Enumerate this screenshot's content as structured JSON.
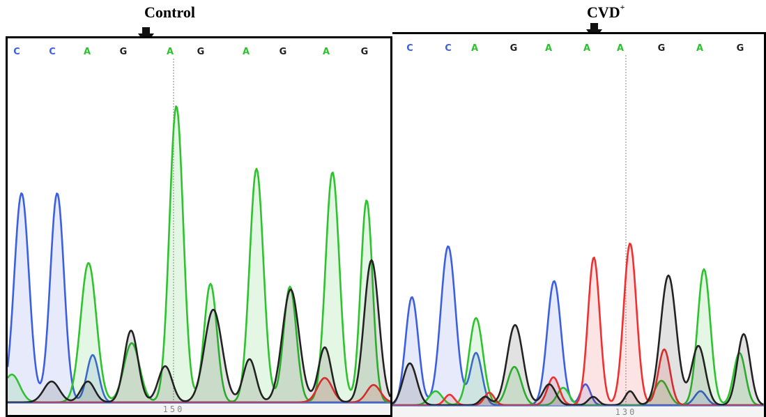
{
  "titles": {
    "control": "Control",
    "cvd": "CVD",
    "cvd_sup": "+"
  },
  "colors": {
    "C": "#3b5fe0",
    "A": "#2ec22e",
    "G": "#222222",
    "T": "#ee3030",
    "marker": "#111111",
    "cursor": "#9a9a9a",
    "baseline": "#4a70e0"
  },
  "control": {
    "bases": [
      "C",
      "C",
      "A",
      "G",
      "A",
      "G",
      "A",
      "G",
      "A",
      "G"
    ],
    "position_label": "150"
  },
  "cvd": {
    "bases": [
      "C",
      "C",
      "A",
      "G",
      "A",
      "A",
      "A",
      "G",
      "A",
      "G"
    ],
    "position_label": "130"
  }
}
